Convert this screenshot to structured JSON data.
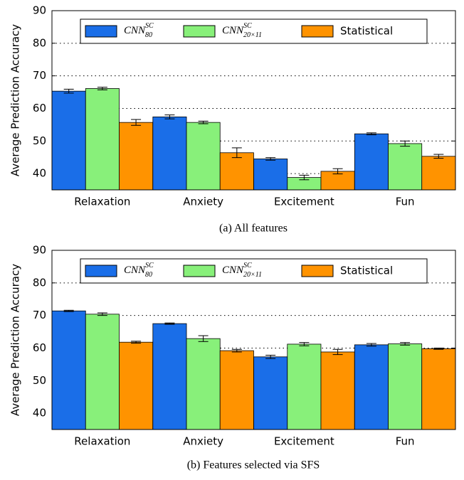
{
  "chart_data": [
    {
      "type": "bar",
      "caption": "(a) All features",
      "ylabel": "Average Prediction Accuracy",
      "categories": [
        "Relaxation",
        "Anxiety",
        "Excitement",
        "Fun"
      ],
      "series": [
        {
          "name": "CNN",
          "subscript": "80",
          "superscript": "SC",
          "color": "#1a6ee8",
          "values": [
            65.3,
            57.4,
            44.5,
            52.2
          ],
          "errors": [
            0.6,
            0.6,
            0.4,
            0.3
          ]
        },
        {
          "name": "CNN",
          "subscript": "20×11",
          "superscript": "SC",
          "color": "#88f07a",
          "values": [
            66.1,
            55.7,
            38.8,
            49.2
          ],
          "errors": [
            0.4,
            0.4,
            0.7,
            0.8
          ]
        },
        {
          "name": "Statistical",
          "color": "#ff9300",
          "values": [
            55.7,
            46.4,
            40.7,
            45.3
          ],
          "errors": [
            0.9,
            1.5,
            0.8,
            0.6
          ]
        }
      ],
      "ylim": [
        35,
        90
      ],
      "yticks": [
        40,
        50,
        60,
        70,
        80,
        90
      ],
      "grid": true,
      "legend": "top"
    },
    {
      "type": "bar",
      "caption": "(b) Features selected via SFS",
      "ylabel": "Average Prediction Accuracy",
      "categories": [
        "Relaxation",
        "Anxiety",
        "Excitement",
        "Fun"
      ],
      "series": [
        {
          "name": "CNN",
          "subscript": "80",
          "superscript": "SC",
          "color": "#1a6ee8",
          "values": [
            71.4,
            67.5,
            57.3,
            61.0
          ],
          "errors": [
            0.2,
            0.2,
            0.5,
            0.4
          ]
        },
        {
          "name": "CNN",
          "subscript": "20×11",
          "superscript": "SC",
          "color": "#88f07a",
          "values": [
            70.4,
            62.9,
            61.2,
            61.3
          ],
          "errors": [
            0.4,
            0.9,
            0.5,
            0.4
          ]
        },
        {
          "name": "Statistical",
          "color": "#ff9300",
          "values": [
            61.8,
            59.2,
            58.8,
            59.8
          ],
          "errors": [
            0.3,
            0.4,
            0.8,
            0.2
          ]
        }
      ],
      "ylim": [
        35,
        90
      ],
      "yticks": [
        40,
        50,
        60,
        70,
        80,
        90
      ],
      "grid": true,
      "legend": "top"
    }
  ]
}
